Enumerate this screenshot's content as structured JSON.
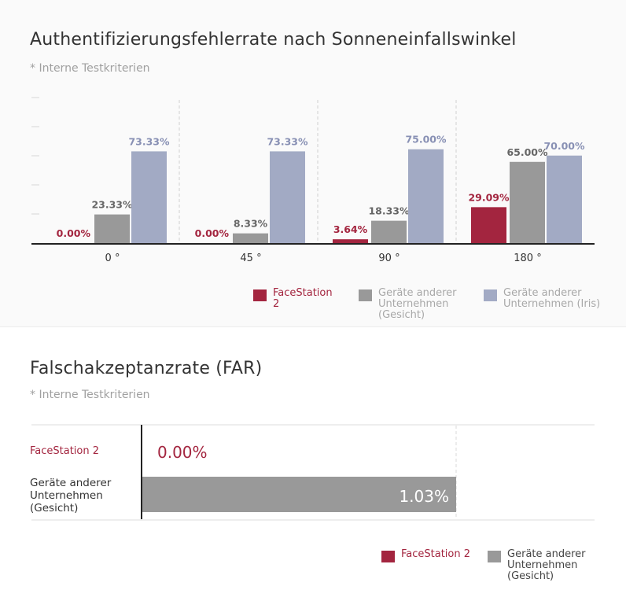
{
  "colors": {
    "facestation": "#a3253f",
    "face_other": "#999999",
    "iris_other": "#a2aac4",
    "label_gray": "#666666",
    "label_blue": "#8890b4"
  },
  "section1": {
    "title": "Authentifizierungsfehlerrate nach Sonneneinfallswinkel",
    "subtitle": "* Interne Testkriterien",
    "legend": [
      {
        "label": "FaceStation 2",
        "color": "#a3253f"
      },
      {
        "label": "Geräte anderer Unternehmen (Gesicht)",
        "color": "#999999"
      },
      {
        "label": "Geräte anderer Unternehmen (Iris)",
        "color": "#a2aac4"
      }
    ]
  },
  "section2": {
    "title": "Falschakzeptanzrate (FAR)",
    "subtitle": "* Interne Testkriterien",
    "row_labels": [
      "FaceStation 2",
      "Geräte anderer Unternehmen (Gesicht)"
    ],
    "legend": [
      {
        "label": "FaceStation 2",
        "color": "#a3253f"
      },
      {
        "label": "Geräte anderer Unternehmen (Gesicht)",
        "color": "#999999"
      }
    ]
  },
  "chart_data": [
    {
      "type": "bar",
      "title": "Authentifizierungsfehlerrate nach Sonneneinfallswinkel",
      "subtitle": "* Interne Testkriterien",
      "xlabel": "",
      "ylabel": "",
      "categories": [
        "0 °",
        "45 °",
        "90 °",
        "180 °"
      ],
      "series": [
        {
          "name": "FaceStation 2",
          "values": [
            0.0,
            0.0,
            3.64,
            29.09
          ],
          "labels": [
            "0.00%",
            "0.00%",
            "3.64%",
            "29.09%"
          ]
        },
        {
          "name": "Geräte anderer Unternehmen (Gesicht)",
          "values": [
            23.33,
            8.33,
            18.33,
            65.0
          ],
          "labels": [
            "23.33%",
            "8.33%",
            "18.33%",
            "65.00%"
          ]
        },
        {
          "name": "Geräte anderer Unternehmen (Iris)",
          "values": [
            73.33,
            73.33,
            75.0,
            70.0
          ],
          "labels": [
            "73.33%",
            "73.33%",
            "75.00%",
            "70.00%"
          ]
        }
      ],
      "ylim": [
        0,
        116
      ],
      "ytick_count": 5,
      "grid": false,
      "legend_position": "bottom-right"
    },
    {
      "type": "bar",
      "orientation": "horizontal",
      "title": "Falschakzeptanzrate (FAR)",
      "subtitle": "* Interne Testkriterien",
      "categories": [
        "FaceStation 2",
        "Geräte anderer Unternehmen (Gesicht)"
      ],
      "values": [
        0.0,
        1.03
      ],
      "labels": [
        "0.00%",
        "1.03%"
      ],
      "xlim": [
        0,
        1.03
      ],
      "grid": false,
      "legend_position": "bottom-right"
    }
  ]
}
